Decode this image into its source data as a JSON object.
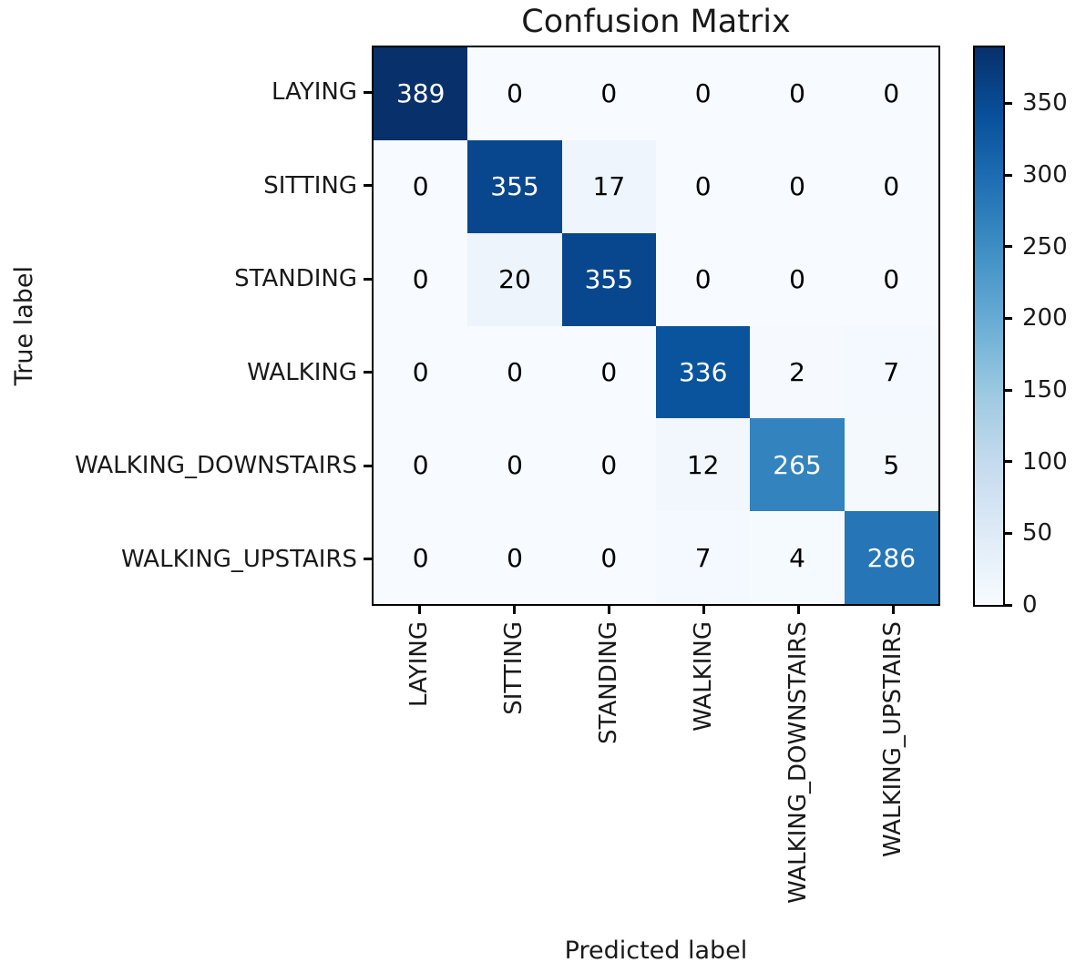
{
  "chart_data": {
    "type": "heatmap",
    "title": "Confusion Matrix",
    "xlabel": "Predicted label",
    "ylabel": "True label",
    "categories": [
      "LAYING",
      "SITTING",
      "STANDING",
      "WALKING",
      "WALKING_DOWNSTAIRS",
      "WALKING_UPSTAIRS"
    ],
    "matrix": [
      [
        389,
        0,
        0,
        0,
        0,
        0
      ],
      [
        0,
        355,
        17,
        0,
        0,
        0
      ],
      [
        0,
        20,
        355,
        0,
        0,
        0
      ],
      [
        0,
        0,
        0,
        336,
        2,
        7
      ],
      [
        0,
        0,
        0,
        12,
        265,
        5
      ],
      [
        0,
        0,
        0,
        7,
        4,
        286
      ]
    ],
    "vmin": 0,
    "vmax": 389,
    "colormap": "Blues",
    "cmap_stops": [
      "#f7fbff",
      "#deebf7",
      "#c6dbef",
      "#9ecae1",
      "#6baed6",
      "#4292c6",
      "#2171b5",
      "#08519c",
      "#08306b"
    ],
    "colorbar_ticks": [
      0,
      50,
      100,
      150,
      200,
      250,
      300,
      350
    ],
    "cell_text_light": "#ffffff",
    "cell_text_dark": "#000000",
    "axis_color": "#000000",
    "legend_position": "right-colorbar",
    "grid": false
  }
}
